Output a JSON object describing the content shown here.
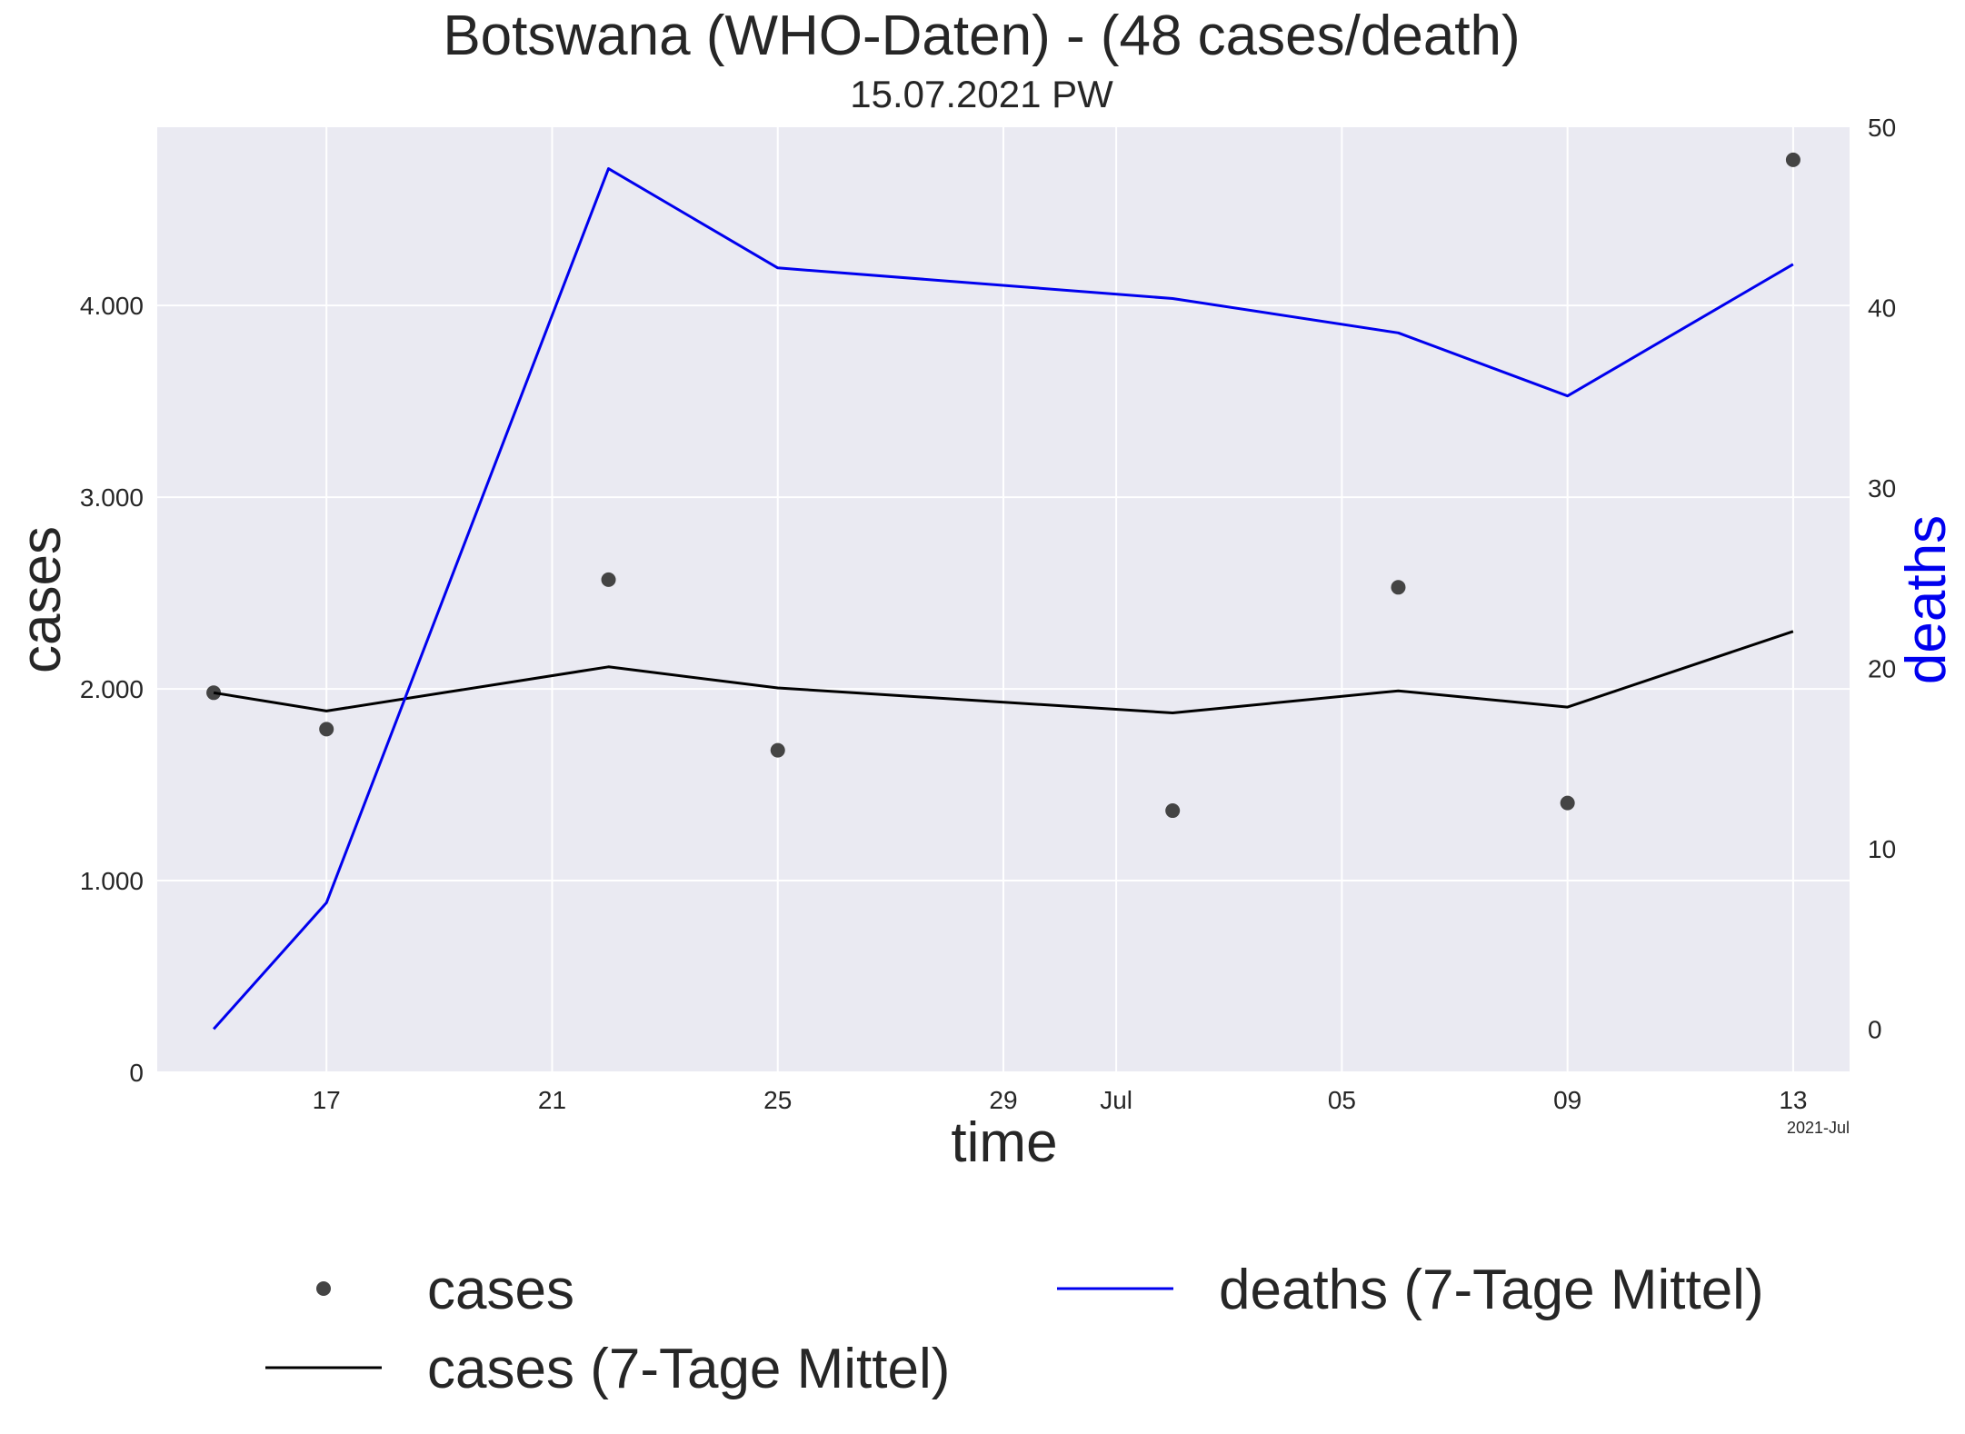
{
  "title": "Botswana (WHO-Daten) - (48 cases/death)",
  "subtitle": "15.07.2021 PW",
  "chart_data": {
    "type": "line",
    "xlabel": "time",
    "ylabel": "cases",
    "ylabel_right": "deaths",
    "date_offset_label": "2021-Jul",
    "xlim": [
      "2021-06-14",
      "2021-07-14"
    ],
    "ylim": [
      0,
      4930
    ],
    "ylim_right": [
      -2.4,
      50
    ],
    "x_ticks": [
      {
        "date": "2021-06-17",
        "label": "17"
      },
      {
        "date": "2021-06-21",
        "label": "21"
      },
      {
        "date": "2021-06-25",
        "label": "25"
      },
      {
        "date": "2021-06-29",
        "label": "29"
      },
      {
        "date": "2021-07-01",
        "label": "Jul"
      },
      {
        "date": "2021-07-05",
        "label": "05"
      },
      {
        "date": "2021-07-09",
        "label": "09"
      },
      {
        "date": "2021-07-13",
        "label": "13"
      }
    ],
    "y_ticks": [
      {
        "value": 0,
        "label": "0"
      },
      {
        "value": 1000,
        "label": "1.000"
      },
      {
        "value": 2000,
        "label": "2.000"
      },
      {
        "value": 3000,
        "label": "3.000"
      },
      {
        "value": 4000,
        "label": "4.000"
      }
    ],
    "y_ticks_right": [
      {
        "value": 0,
        "label": "0"
      },
      {
        "value": 10,
        "label": "10"
      },
      {
        "value": 20,
        "label": "20"
      },
      {
        "value": 30,
        "label": "30"
      },
      {
        "value": 40,
        "label": "40"
      },
      {
        "value": 50,
        "label": "50"
      }
    ],
    "grid": true,
    "legend_position": "bottom",
    "series": [
      {
        "name": "cases",
        "style": "scatter",
        "axis": "left",
        "color": "#444444",
        "x": [
          "2021-06-15",
          "2021-06-17",
          "2021-06-22",
          "2021-06-25",
          "2021-07-02",
          "2021-07-06",
          "2021-07-09",
          "2021-07-13"
        ],
        "values": [
          1980,
          1790,
          2570,
          1680,
          1365,
          2530,
          1405,
          4760
        ]
      },
      {
        "name": "cases (7-Tage Mittel)",
        "style": "line",
        "axis": "left",
        "color": "#000000",
        "x": [
          "2021-06-15",
          "2021-06-17",
          "2021-06-22",
          "2021-06-25",
          "2021-07-02",
          "2021-07-06",
          "2021-07-09",
          "2021-07-13"
        ],
        "values": [
          1980,
          1885,
          2115,
          2005,
          1875,
          1990,
          1905,
          2300
        ]
      },
      {
        "name": "deaths (7-Tage Mittel)",
        "style": "line",
        "axis": "right",
        "color": "#0000ee",
        "x": [
          "2021-06-15",
          "2021-06-17",
          "2021-06-22",
          "2021-06-25",
          "2021-07-02",
          "2021-07-06",
          "2021-07-09",
          "2021-07-13"
        ],
        "values": [
          0,
          7,
          47.7,
          42.2,
          40.5,
          38.6,
          35.1,
          42.4
        ]
      }
    ]
  },
  "legend": {
    "scatter_label": "cases",
    "avg_label": "cases (7-Tage Mittel)",
    "deaths_label": "deaths (7-Tage Mittel)"
  }
}
